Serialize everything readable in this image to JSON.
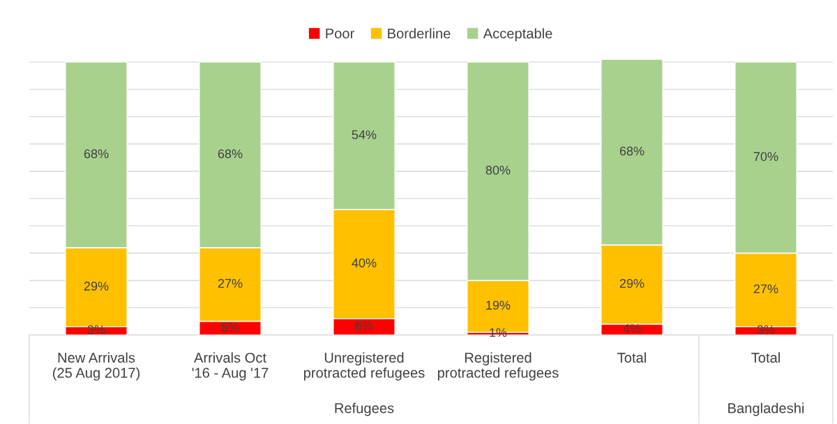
{
  "chart_data": {
    "type": "bar",
    "stacked": true,
    "categories": [
      "New Arrivals (25 Aug 2017)",
      "Arrivals Oct '16 - Aug '17",
      "Unregistered protracted refugees",
      "Registered protracted refugees",
      "Total",
      "Total"
    ],
    "series": [
      {
        "name": "Poor",
        "color": "#ff0000",
        "values": [
          3,
          5,
          6,
          1,
          4,
          3
        ],
        "value_labels": [
          "3%",
          "5%",
          "6%",
          "1%",
          "4%",
          "3%"
        ]
      },
      {
        "name": "Borderline",
        "color": "#ffc000",
        "values": [
          29,
          27,
          40,
          19,
          29,
          27
        ],
        "value_labels": [
          "29%",
          "27%",
          "40%",
          "19%",
          "29%",
          "27%"
        ]
      },
      {
        "name": "Acceptable",
        "color": "#a9d18e",
        "values": [
          68,
          68,
          54,
          80,
          68,
          70
        ],
        "value_labels": [
          "68%",
          "68%",
          "54%",
          "80%",
          "68%",
          "70%"
        ]
      }
    ],
    "ylim": [
      0,
      101
    ],
    "yticks": [
      {
        "value": 0,
        "label": null
      },
      {
        "value": 10,
        "label": null
      },
      {
        "value": 20,
        "label": null
      },
      {
        "value": 30,
        "label": null
      },
      {
        "value": 40,
        "label": null
      },
      {
        "value": 50,
        "label": null
      },
      {
        "value": 60,
        "label": null
      },
      {
        "value": 70,
        "label": null
      },
      {
        "value": 80,
        "label": null
      },
      {
        "value": 90,
        "label": null
      },
      {
        "value": 100,
        "label": null
      }
    ],
    "tick_labels": "x",
    "grid": "y",
    "legend": "top",
    "annotations": [
      "Refugees",
      "Bangladeshi"
    ]
  }
}
